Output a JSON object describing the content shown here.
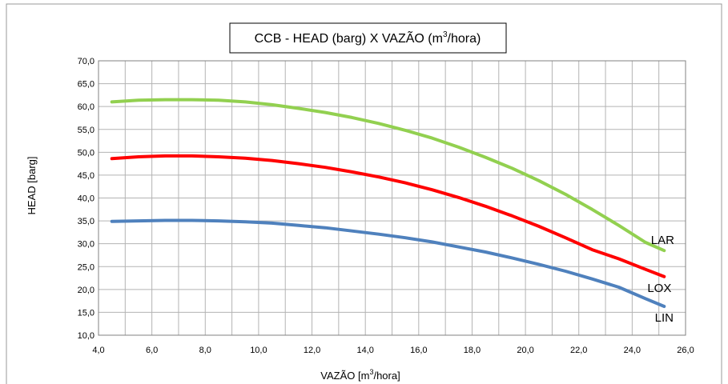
{
  "chart_data": {
    "type": "line",
    "title_main": "CCB - HEAD (barg) X VAZÃO (m",
    "title_sup": "3",
    "title_tail": "/hora)",
    "xlabel_main": "VAZÃO [m",
    "xlabel_sup": "3",
    "xlabel_tail": "/hora]",
    "ylabel": "HEAD [barg]",
    "xlim": [
      4.0,
      26.0
    ],
    "ylim": [
      10.0,
      70.0
    ],
    "x_ticks": [
      "4,0",
      "6,0",
      "8,0",
      "10,0",
      "12,0",
      "14,0",
      "16,0",
      "18,0",
      "20,0",
      "22,0",
      "24,0",
      "26,0"
    ],
    "y_ticks": [
      "10,0",
      "15,0",
      "20,0",
      "25,0",
      "30,0",
      "35,0",
      "40,0",
      "45,0",
      "50,0",
      "55,0",
      "60,0",
      "65,0",
      "70,0"
    ],
    "grid": true,
    "series": [
      {
        "name": "LAR",
        "color": "#92D050",
        "x": [
          4.5,
          5.5,
          6.5,
          7.5,
          8.5,
          9.5,
          10.5,
          11.5,
          12.5,
          13.5,
          14.5,
          15.5,
          16.5,
          17.5,
          18.5,
          19.5,
          20.5,
          21.5,
          22.5,
          23.5,
          24.5,
          25.2
        ],
        "y": [
          61.0,
          61.4,
          61.5,
          61.5,
          61.4,
          61.0,
          60.4,
          59.6,
          58.7,
          57.6,
          56.3,
          54.8,
          53.1,
          51.1,
          48.9,
          46.5,
          43.8,
          40.8,
          37.5,
          34.0,
          30.3,
          28.5
        ]
      },
      {
        "name": "LOX",
        "color": "#FF0000",
        "x": [
          4.5,
          5.5,
          6.5,
          7.5,
          8.5,
          9.5,
          10.5,
          11.5,
          12.5,
          13.5,
          14.5,
          15.5,
          16.5,
          17.5,
          18.5,
          19.5,
          20.5,
          21.5,
          22.5,
          23.5,
          24.5,
          25.2
        ],
        "y": [
          48.6,
          49.0,
          49.2,
          49.2,
          49.0,
          48.7,
          48.2,
          47.5,
          46.7,
          45.7,
          44.6,
          43.3,
          41.8,
          40.1,
          38.2,
          36.1,
          33.8,
          31.3,
          28.7,
          26.7,
          24.4,
          22.8
        ]
      },
      {
        "name": "LIN",
        "color": "#4F81BD",
        "x": [
          4.5,
          5.5,
          6.5,
          7.5,
          8.5,
          9.5,
          10.5,
          11.5,
          12.5,
          13.5,
          14.5,
          15.5,
          16.5,
          17.5,
          18.5,
          19.5,
          20.5,
          21.5,
          22.5,
          23.5,
          24.5,
          25.2
        ],
        "y": [
          34.9,
          35.0,
          35.1,
          35.1,
          35.0,
          34.8,
          34.5,
          34.0,
          33.5,
          32.8,
          32.1,
          31.3,
          30.4,
          29.3,
          28.2,
          26.9,
          25.5,
          24.0,
          22.3,
          20.5,
          18.0,
          16.3
        ]
      }
    ]
  }
}
